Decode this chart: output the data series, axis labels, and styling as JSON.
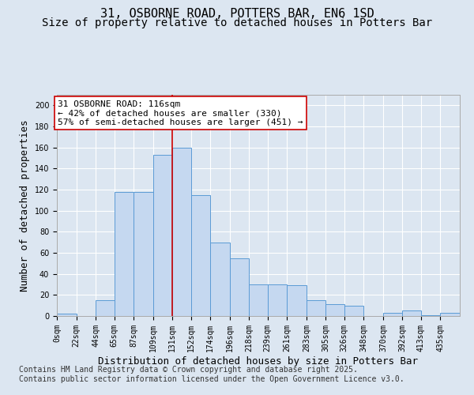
{
  "title": "31, OSBORNE ROAD, POTTERS BAR, EN6 1SD",
  "subtitle": "Size of property relative to detached houses in Potters Bar",
  "xlabel": "Distribution of detached houses by size in Potters Bar",
  "ylabel": "Number of detached properties",
  "bin_labels": [
    "0sqm",
    "22sqm",
    "44sqm",
    "65sqm",
    "87sqm",
    "109sqm",
    "131sqm",
    "152sqm",
    "174sqm",
    "196sqm",
    "218sqm",
    "239sqm",
    "261sqm",
    "283sqm",
    "305sqm",
    "326sqm",
    "348sqm",
    "370sqm",
    "392sqm",
    "413sqm",
    "435sqm"
  ],
  "bar_heights": [
    2,
    0,
    15,
    118,
    118,
    153,
    160,
    115,
    70,
    55,
    30,
    30,
    29,
    15,
    11,
    10,
    0,
    3,
    5,
    1,
    3
  ],
  "bar_color": "#c5d8f0",
  "bar_edge_color": "#5b9bd5",
  "vline_x": 131,
  "vline_color": "#cc0000",
  "annotation_text": "31 OSBORNE ROAD: 116sqm\n← 42% of detached houses are smaller (330)\n57% of semi-detached houses are larger (451) →",
  "annotation_box_color": "#ffffff",
  "annotation_box_edge": "#cc0000",
  "ylim": [
    0,
    210
  ],
  "yticks": [
    0,
    20,
    40,
    60,
    80,
    100,
    120,
    140,
    160,
    180,
    200
  ],
  "bg_color": "#dce6f1",
  "plot_bg_color": "#dce6f1",
  "footer": "Contains HM Land Registry data © Crown copyright and database right 2025.\nContains public sector information licensed under the Open Government Licence v3.0.",
  "title_fontsize": 11,
  "subtitle_fontsize": 10,
  "xlabel_fontsize": 9,
  "ylabel_fontsize": 9,
  "tick_fontsize": 7,
  "annotation_fontsize": 8,
  "footer_fontsize": 7,
  "bins": [
    0,
    22,
    44,
    65,
    87,
    109,
    131,
    152,
    174,
    196,
    218,
    239,
    261,
    283,
    305,
    326,
    348,
    370,
    392,
    413,
    435,
    457
  ]
}
